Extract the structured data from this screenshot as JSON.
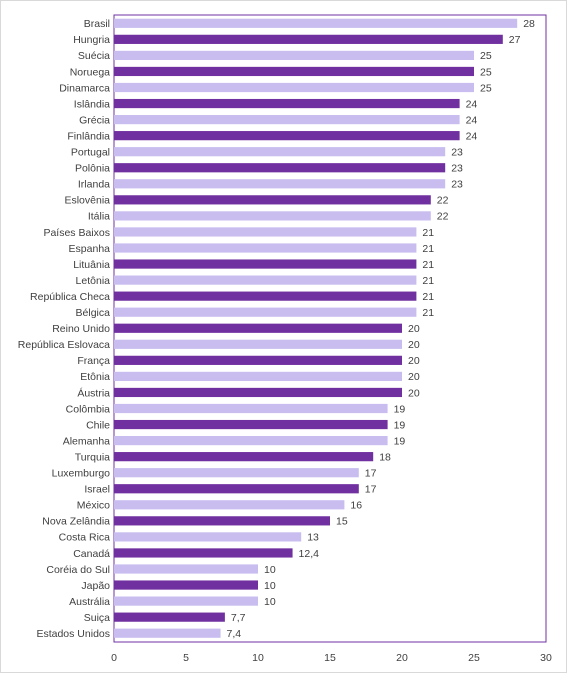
{
  "chart_data": {
    "type": "bar",
    "orientation": "horizontal",
    "title": "",
    "xlabel": "",
    "ylabel": "",
    "xlim": [
      0,
      30
    ],
    "xticks": [
      0,
      5,
      10,
      15,
      20,
      25,
      30
    ],
    "grid": false,
    "legend": "none",
    "colors": {
      "dark": "#7030a0",
      "light": "#c9bdf0",
      "axis": "#7030a0"
    },
    "categories": [
      "Brasil",
      "Hungria",
      "Suécia",
      "Noruega",
      "Dinamarca",
      "Islândia",
      "Grécia",
      "Finlândia",
      "Portugal",
      "Polônia",
      "Irlanda",
      "Eslovênia",
      "Itália",
      "Países Baixos",
      "Espanha",
      "Lituânia",
      "Letônia",
      "República Checa",
      "Bélgica",
      "Reino Unido",
      "República Eslovaca",
      "França",
      "Etônia",
      "Áustria",
      "Colômbia",
      "Chile",
      "Alemanha",
      "Turquia",
      "Luxemburgo",
      "Israel",
      "México",
      "Nova Zelândia",
      "Costa Rica",
      "Canadá",
      "Coréia do Sul",
      "Japão",
      "Austrália",
      "Suiça",
      "Estados Unidos"
    ],
    "values": [
      28,
      27,
      25,
      25,
      25,
      24,
      24,
      24,
      23,
      23,
      23,
      22,
      22,
      21,
      21,
      21,
      21,
      21,
      21,
      20,
      20,
      20,
      20,
      20,
      19,
      19,
      19,
      18,
      17,
      17,
      16,
      15,
      13,
      12.4,
      10,
      10,
      10,
      7.7,
      7.4
    ],
    "value_labels": [
      "28",
      "27",
      "25",
      "25",
      "25",
      "24",
      "24",
      "24",
      "23",
      "23",
      "23",
      "22",
      "22",
      "21",
      "21",
      "21",
      "21",
      "21",
      "21",
      "20",
      "20",
      "20",
      "20",
      "20",
      "19",
      "19",
      "19",
      "18",
      "17",
      "17",
      "16",
      "15",
      "13",
      "12,4",
      "10",
      "10",
      "10",
      "7,7",
      "7,4"
    ],
    "bar_shade": [
      "light",
      "dark",
      "light",
      "dark",
      "light",
      "dark",
      "light",
      "dark",
      "light",
      "dark",
      "light",
      "dark",
      "light",
      "light",
      "light",
      "dark",
      "light",
      "dark",
      "light",
      "dark",
      "light",
      "dark",
      "light",
      "dark",
      "light",
      "dark",
      "light",
      "dark",
      "light",
      "dark",
      "light",
      "dark",
      "light",
      "dark",
      "light",
      "dark",
      "light",
      "dark",
      "light"
    ]
  }
}
